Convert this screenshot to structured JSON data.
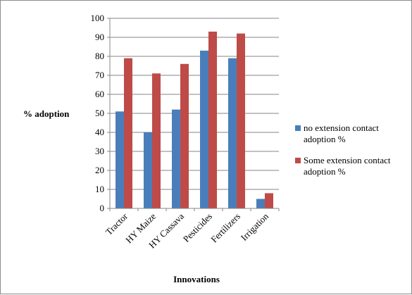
{
  "chart_data": {
    "type": "bar",
    "categories": [
      "Tractor",
      "HY Maize",
      "HY Cassava",
      "Pesticides",
      "Fertilizers",
      "Irrigation"
    ],
    "series": [
      {
        "name": "no extension contact adoption %",
        "values": [
          51,
          40,
          52,
          83,
          79,
          5
        ],
        "color": "#4a7ebb"
      },
      {
        "name": "Some extension contact adoption %",
        "values": [
          79,
          71,
          76,
          93,
          92,
          8
        ],
        "color": "#be4b48"
      }
    ],
    "legend_lines": [
      [
        "no extension contact",
        "adoption %"
      ],
      [
        "Some extension contact",
        "adoption %"
      ]
    ],
    "title": "",
    "xlabel": "Innovations",
    "ylabel": "% adoption",
    "ylim": [
      0,
      100
    ],
    "yticks": [
      0,
      10,
      20,
      30,
      40,
      50,
      60,
      70,
      80,
      90,
      100
    ],
    "grid": "horizontal major gridlines",
    "legend_position": "right"
  }
}
